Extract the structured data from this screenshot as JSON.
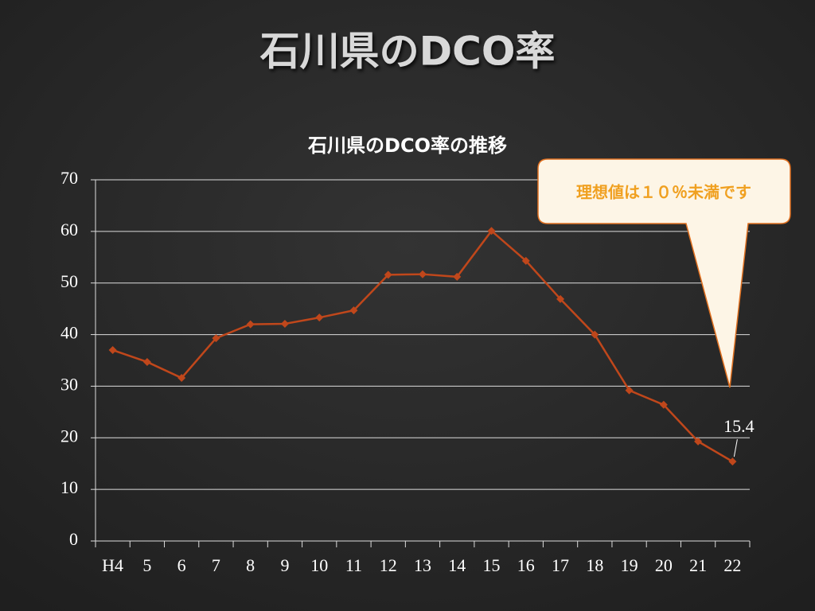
{
  "slide_title": "石川県のDCO率",
  "callout": "理想値は１０％未満です",
  "chart_data": {
    "type": "line",
    "title": "石川県のDCO率の推移",
    "categories": [
      "H4",
      "5",
      "6",
      "7",
      "8",
      "9",
      "10",
      "11",
      "12",
      "13",
      "14",
      "15",
      "16",
      "17",
      "18",
      "19",
      "20",
      "21",
      "22"
    ],
    "series": [
      {
        "name": "DCO率",
        "color": "#c0471b",
        "values": [
          37,
          34.7,
          31.6,
          39.3,
          42,
          42.1,
          43.3,
          44.7,
          51.6,
          51.7,
          51.2,
          60.1,
          54.3,
          46.9,
          40,
          29.2,
          26.4,
          19.3,
          15.4
        ]
      }
    ],
    "ylim": [
      0,
      70
    ],
    "yticks": [
      0,
      10,
      20,
      30,
      40,
      50,
      60,
      70
    ],
    "grid": true
  }
}
